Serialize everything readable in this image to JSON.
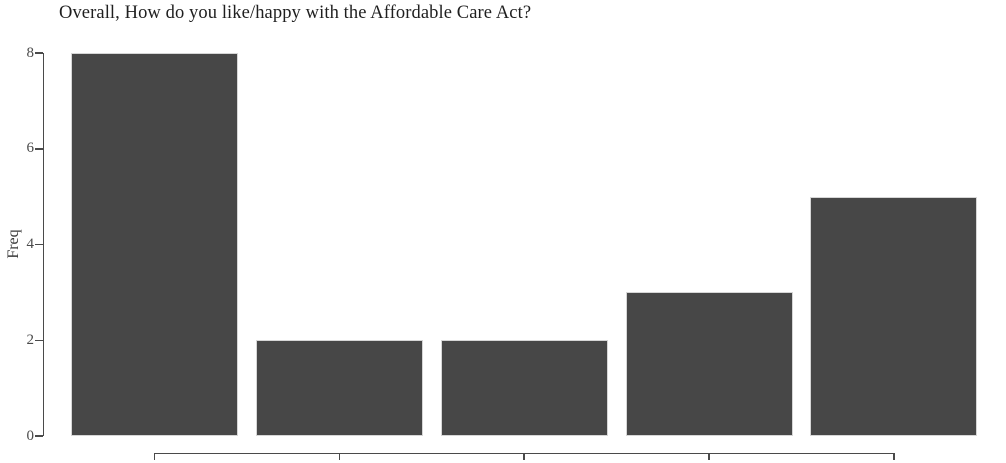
{
  "chart_data": {
    "type": "bar",
    "title": "Overall, How do you like/happy with the Affordable Care Act?",
    "xlabel": "",
    "ylabel": "Freq",
    "categories": [
      "",
      "",
      "",
      "",
      ""
    ],
    "values": [
      8,
      2,
      2,
      3,
      5
    ],
    "ylim": [
      0,
      8
    ],
    "yticks": [
      0,
      2,
      4,
      6,
      8
    ],
    "grid": false,
    "legend": false
  },
  "colors": {
    "background": "#ffffff",
    "bar_fill": "#474747",
    "bar_border": "#d6d6d6",
    "axis": "#4a4a4a",
    "tick_label": "#4a4a4a",
    "title_text": "#1f1f1f"
  }
}
